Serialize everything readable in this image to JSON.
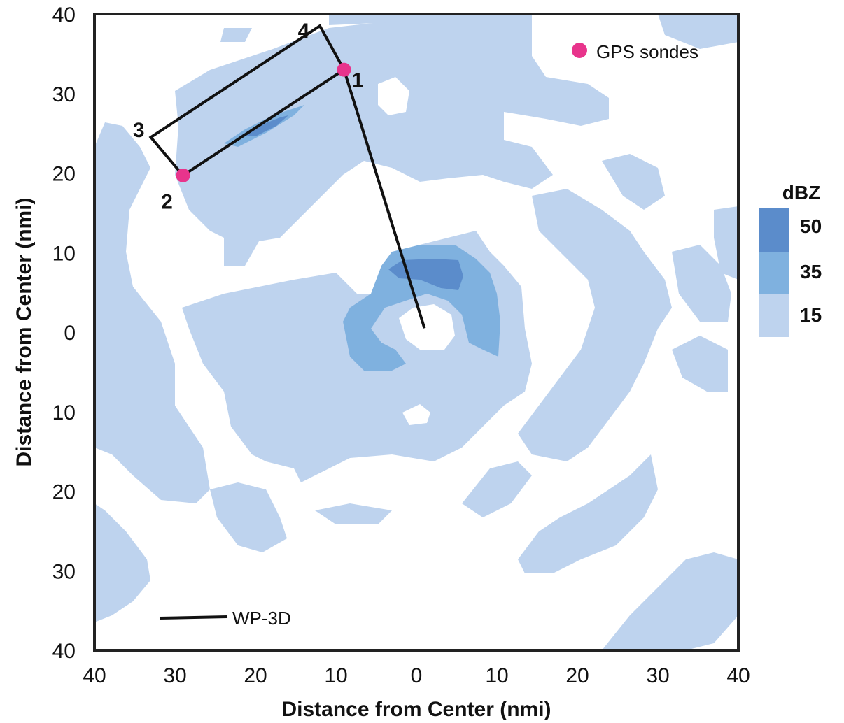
{
  "chart_data": {
    "type": "map",
    "x_axis": {
      "label": "Distance from Center (nmi)",
      "range": [
        -40,
        40
      ],
      "tick_labels": [
        "40",
        "30",
        "20",
        "10",
        "0",
        "10",
        "20",
        "30",
        "40"
      ]
    },
    "y_axis": {
      "label": "Distance from Center (nmi)",
      "range": [
        -40,
        40
      ],
      "tick_labels": [
        "40",
        "30",
        "20",
        "10",
        "0",
        "10",
        "20",
        "30",
        "40"
      ]
    },
    "colorbar": {
      "title": "dBZ",
      "levels": [
        {
          "label": "50",
          "color": "#5b8ccb"
        },
        {
          "label": "35",
          "color": "#7fb1df"
        },
        {
          "label": "15",
          "color": "#bed3ee"
        }
      ]
    },
    "flight_track": {
      "name": "WP-3D",
      "points": [
        [
          1,
          0.5
        ],
        [
          -9,
          33
        ],
        [
          -29,
          19.7
        ],
        [
          -33,
          24.5
        ],
        [
          -12,
          38.5
        ],
        [
          -9,
          33
        ]
      ]
    },
    "gps_sondes": {
      "name": "GPS sondes",
      "color": "#e8348c",
      "points": [
        [
          -9,
          33
        ],
        [
          -29,
          19.7
        ]
      ]
    },
    "waypoints": [
      {
        "label": "1",
        "x": -7.3,
        "y": 31.8
      },
      {
        "label": "2",
        "x": -31,
        "y": 16.5
      },
      {
        "label": "3",
        "x": -34.5,
        "y": 25.5
      },
      {
        "label": "4",
        "x": -14,
        "y": 38
      }
    ]
  }
}
